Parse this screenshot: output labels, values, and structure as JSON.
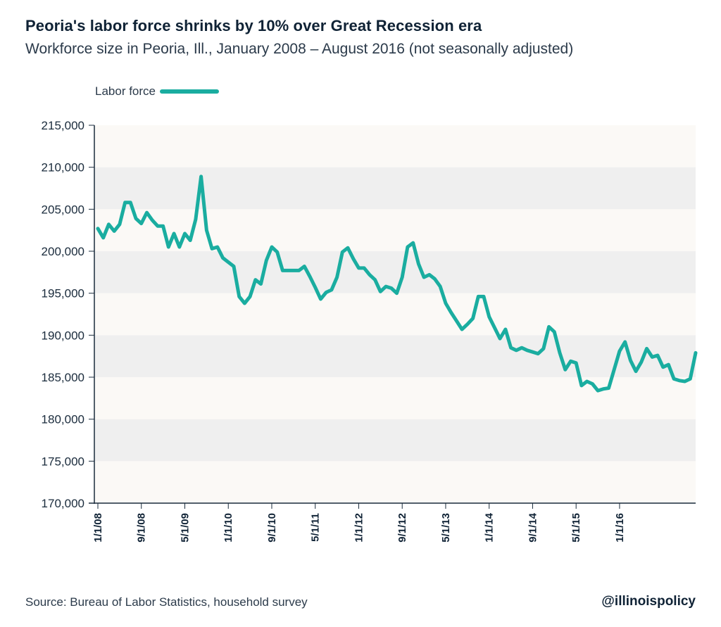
{
  "title": "Peoria's labor force shrinks by 10% over Great Recession era",
  "subtitle": "Workforce size in Peoria, Ill., January 2008 – August 2016 (not seasonally adjusted)",
  "source": "Source: Bureau of Labor Statistics, household survey",
  "handle": "@illinoispolicy",
  "chart_data": {
    "type": "line",
    "title": "Peoria's labor force shrinks by 10% over Great Recession era",
    "subtitle": "Workforce size in Peoria, Ill., January 2008 – August 2016 (not seasonally adjusted)",
    "xlabel": "",
    "ylabel": "",
    "ylim": [
      170000,
      215000
    ],
    "yticks": [
      "170,000",
      "175,000",
      "180,000",
      "185,000",
      "190,000",
      "195,000",
      "200,000",
      "205,000",
      "210,000",
      "215,000"
    ],
    "xtick_labels": [
      "1/1/08",
      "9/1/08",
      "5/1/09",
      "1/1/10",
      "9/1/10",
      "5/1/11",
      "1/1/12",
      "9/1/12",
      "5/1/13",
      "1/1/14",
      "9/1/14",
      "5/1/15",
      "1/1/16"
    ],
    "x_start": "1/1/08",
    "x_end": "8/1/16",
    "legend_position": "top-left",
    "grid": "horizontal bands",
    "colors": {
      "line": "#1aada0",
      "band_dark": "#efefef",
      "band_light": "#fbf9f6"
    },
    "series": [
      {
        "name": "Labor force",
        "values": [
          202700,
          201600,
          203200,
          202400,
          203200,
          205800,
          205800,
          203900,
          203300,
          204600,
          203700,
          203000,
          203000,
          200500,
          202100,
          200500,
          202100,
          201300,
          203800,
          208900,
          202500,
          200300,
          200500,
          199200,
          198700,
          198200,
          194600,
          193800,
          194600,
          196600,
          196100,
          198900,
          200500,
          199900,
          197700,
          197700,
          197700,
          197700,
          198200,
          197000,
          195700,
          194300,
          195100,
          195400,
          196900,
          199900,
          200400,
          199100,
          198000,
          198000,
          197200,
          196600,
          195200,
          195800,
          195600,
          195000,
          196900,
          200500,
          201000,
          198500,
          196900,
          197200,
          196700,
          195800,
          193800,
          192700,
          191700,
          190700,
          191300,
          192000,
          194600,
          194600,
          192200,
          190900,
          189600,
          190700,
          188500,
          188200,
          188500,
          188200,
          188000,
          187800,
          188400,
          191000,
          190400,
          187900,
          185900,
          186900,
          186700,
          184000,
          184500,
          184200,
          183400,
          183600,
          183700,
          185900,
          188100,
          189200,
          187000,
          185700,
          186800,
          188400,
          187400,
          187600,
          186200,
          186500,
          184800,
          184600,
          184500,
          184800,
          187900
        ]
      }
    ]
  }
}
